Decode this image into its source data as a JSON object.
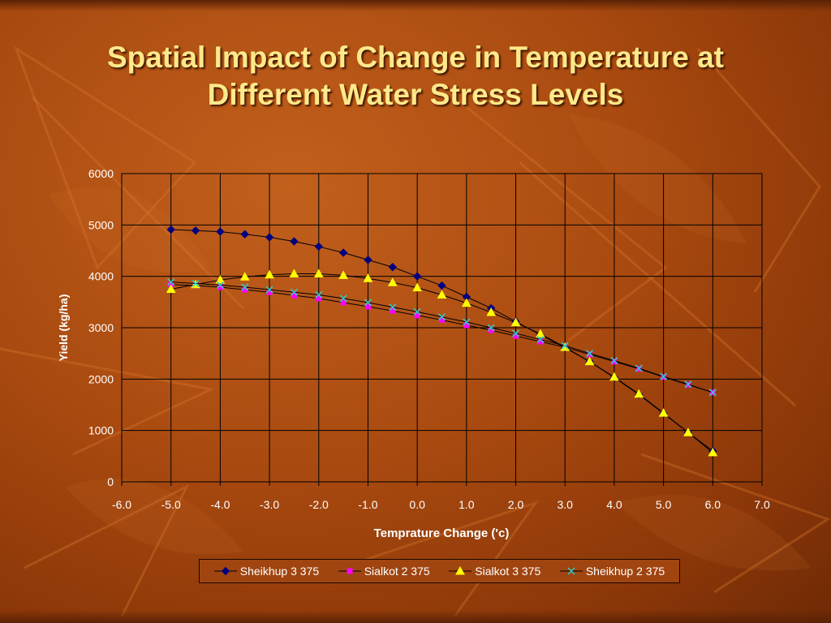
{
  "slide": {
    "title_line1": "Spatial Impact of Change in Temperature at",
    "title_line2": "Different Water Stress Levels"
  },
  "chart_data": {
    "type": "line",
    "xlabel": "Temprature Change ('c)",
    "ylabel": "Yield (kg/ha)",
    "xlim": [
      -6.0,
      7.0
    ],
    "ylim": [
      0,
      6000
    ],
    "x_ticks": [
      "-6.0",
      "-5.0",
      "-4.0",
      "-3.0",
      "-2.0",
      "-1.0",
      "0.0",
      "1.0",
      "2.0",
      "3.0",
      "4.0",
      "5.0",
      "6.0",
      "7.0"
    ],
    "y_ticks": [
      "0",
      "1000",
      "2000",
      "3000",
      "4000",
      "5000",
      "6000"
    ],
    "grid": true,
    "legend_position": "bottom",
    "x": [
      -5.0,
      -4.5,
      -4.0,
      -3.5,
      -3.0,
      -2.5,
      -2.0,
      -1.5,
      -1.0,
      -0.5,
      0.0,
      0.5,
      1.0,
      1.5,
      2.0,
      2.5,
      3.0,
      3.5,
      4.0,
      4.5,
      5.0,
      5.5,
      6.0
    ],
    "series": [
      {
        "name": "Sheikhup 3 375",
        "color": "#000080",
        "marker": "diamond",
        "x": [
          -5.0,
          -4.5,
          -4.0,
          -3.5,
          -3.0,
          -2.5,
          -2.0,
          -1.5,
          -1.0,
          -0.5,
          0.0,
          0.5,
          1.0,
          1.5,
          2.0,
          2.5,
          3.0,
          3.5,
          4.0,
          4.5,
          5.0,
          5.5,
          6.0
        ],
        "values": [
          4910,
          4890,
          4870,
          4820,
          4760,
          4680,
          4580,
          4460,
          4320,
          4180,
          4000,
          3820,
          3600,
          3380,
          3120,
          2860,
          2610,
          2340,
          2030,
          1700,
          1330,
          960,
          600
        ]
      },
      {
        "name": "Sialkot 2 375",
        "color": "#ff00ff",
        "marker": "square",
        "x": [
          -5.0,
          -4.5,
          -4.0,
          -3.5,
          -3.0,
          -2.5,
          -2.0,
          -1.5,
          -1.0,
          -0.5,
          0.0,
          0.5,
          1.0,
          1.5,
          2.0,
          2.5,
          3.0,
          3.5,
          4.0,
          4.5,
          5.0,
          5.5,
          6.0
        ],
        "values": [
          3840,
          3820,
          3790,
          3740,
          3690,
          3630,
          3570,
          3490,
          3410,
          3330,
          3240,
          3150,
          3050,
          2950,
          2840,
          2730,
          2620,
          2480,
          2340,
          2200,
          2040,
          1890,
          1740
        ]
      },
      {
        "name": "Sialkot 3 375",
        "color": "#ffff00",
        "marker": "triangle",
        "x": [
          -5.0,
          -4.5,
          -4.0,
          -3.5,
          -3.0,
          -2.5,
          -2.0,
          -1.5,
          -1.0,
          -0.5,
          0.0,
          0.5,
          1.0,
          1.5,
          2.0,
          2.5,
          3.0,
          3.5,
          4.0,
          4.5,
          5.0,
          5.5,
          6.0
        ],
        "values": [
          3750,
          3840,
          3930,
          3990,
          4030,
          4050,
          4050,
          4020,
          3960,
          3880,
          3780,
          3640,
          3480,
          3300,
          3100,
          2880,
          2620,
          2340,
          2040,
          1710,
          1340,
          960,
          570
        ]
      },
      {
        "name": "Sheikhup 2 375",
        "color": "#33cccc",
        "marker": "x",
        "x": [
          -5.0,
          -4.5,
          -4.0,
          -3.5,
          -3.0,
          -2.5,
          -2.0,
          -1.5,
          -1.0,
          -0.5,
          0.0,
          0.5,
          1.0,
          1.5,
          2.0,
          2.5,
          3.0,
          3.5,
          4.0,
          4.5,
          5.0,
          5.5,
          6.0
        ],
        "values": [
          3890,
          3860,
          3830,
          3790,
          3740,
          3690,
          3640,
          3570,
          3490,
          3400,
          3310,
          3210,
          3110,
          3000,
          2890,
          2770,
          2650,
          2500,
          2360,
          2210,
          2050,
          1900,
          1740
        ]
      }
    ]
  }
}
